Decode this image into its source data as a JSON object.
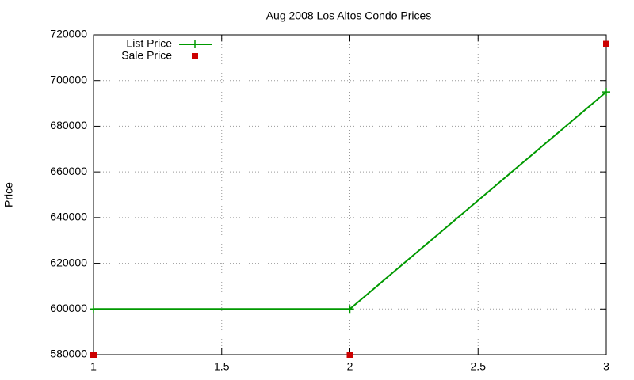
{
  "chart_data": {
    "type": "line",
    "title": "Aug 2008 Los Altos Condo Prices",
    "ylabel": "Price",
    "x": [
      1,
      2,
      3
    ],
    "series": [
      {
        "name": "List Price",
        "color": "#009900",
        "style": "linespoints",
        "values": [
          600000,
          600000,
          695000
        ]
      },
      {
        "name": "Sale Price",
        "color": "#cc0000",
        "style": "points",
        "values": [
          580000,
          580000,
          716000
        ]
      }
    ],
    "xlim": [
      1,
      3
    ],
    "xticks": [
      1,
      1.5,
      2,
      2.5,
      3
    ],
    "ylim": [
      580000,
      720000
    ],
    "yticks": [
      580000,
      600000,
      620000,
      640000,
      660000,
      680000,
      700000,
      720000
    ],
    "grid": true,
    "legend": "top-left"
  }
}
